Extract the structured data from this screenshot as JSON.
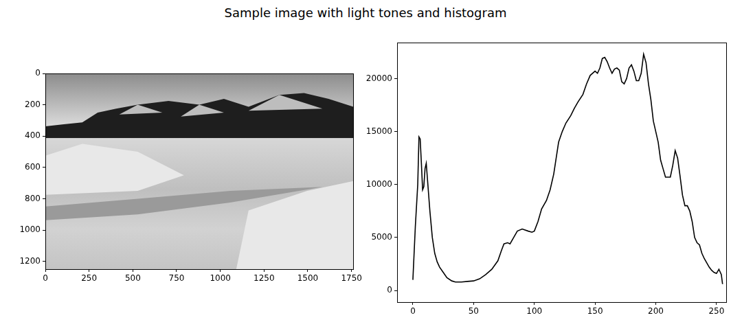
{
  "title": "Sample image with light tones and histogram",
  "chart_data": [
    {
      "type": "image",
      "xlim": [
        0,
        1760
      ],
      "ylim": [
        1250,
        0
      ],
      "xticks": [
        0,
        250,
        500,
        750,
        1000,
        1250,
        1500,
        1750
      ],
      "yticks": [
        0,
        200,
        400,
        600,
        800,
        1000,
        1200
      ],
      "grid": false
    },
    {
      "type": "line",
      "color": "#000000",
      "grid": false,
      "xlim": [
        -13,
        258
      ],
      "ylim": [
        -1100,
        23400
      ],
      "xticks": [
        0,
        50,
        100,
        150,
        200,
        250
      ],
      "yticks": [
        0,
        5000,
        10000,
        15000,
        20000
      ],
      "x": [
        0,
        2,
        4,
        5,
        6,
        7,
        8,
        9,
        10,
        11,
        12,
        14,
        16,
        18,
        20,
        22,
        25,
        28,
        32,
        35,
        40,
        45,
        50,
        55,
        60,
        65,
        70,
        73,
        75,
        78,
        80,
        83,
        86,
        90,
        95,
        98,
        100,
        103,
        106,
        110,
        113,
        116,
        118,
        120,
        123,
        126,
        130,
        133,
        136,
        140,
        143,
        146,
        150,
        152,
        154,
        156,
        158,
        160,
        162,
        164,
        166,
        168,
        170,
        172,
        174,
        176,
        178,
        180,
        182,
        184,
        186,
        188,
        190,
        192,
        194,
        196,
        198,
        200,
        202,
        204,
        206,
        208,
        210,
        212,
        214,
        216,
        218,
        220,
        222,
        224,
        226,
        228,
        230,
        232,
        234,
        236,
        238,
        240,
        242,
        244,
        246,
        248,
        250,
        252,
        254,
        255
      ],
      "values": [
        1000,
        6000,
        10000,
        14500,
        14300,
        12000,
        9500,
        9800,
        11500,
        12000,
        10500,
        7500,
        5000,
        3500,
        2700,
        2200,
        1700,
        1200,
        900,
        800,
        800,
        850,
        900,
        1100,
        1500,
        2000,
        2800,
        3800,
        4400,
        4500,
        4400,
        5000,
        5600,
        5800,
        5600,
        5500,
        5600,
        6500,
        7700,
        8500,
        9500,
        11000,
        12500,
        14000,
        15000,
        15800,
        16500,
        17200,
        17800,
        18500,
        19500,
        20300,
        20700,
        20500,
        21000,
        21900,
        22000,
        21600,
        21000,
        20500,
        20900,
        21000,
        20800,
        19700,
        19500,
        20000,
        21000,
        21300,
        20700,
        19800,
        19800,
        20500,
        22300,
        21500,
        19500,
        18000,
        16000,
        15000,
        14000,
        12300,
        11500,
        10700,
        10700,
        10700,
        11800,
        13200,
        12500,
        10800,
        9000,
        8000,
        8000,
        7500,
        6500,
        5000,
        4500,
        4300,
        3500,
        3000,
        2600,
        2200,
        1900,
        1700,
        1600,
        2000,
        1500,
        600
      ]
    }
  ]
}
